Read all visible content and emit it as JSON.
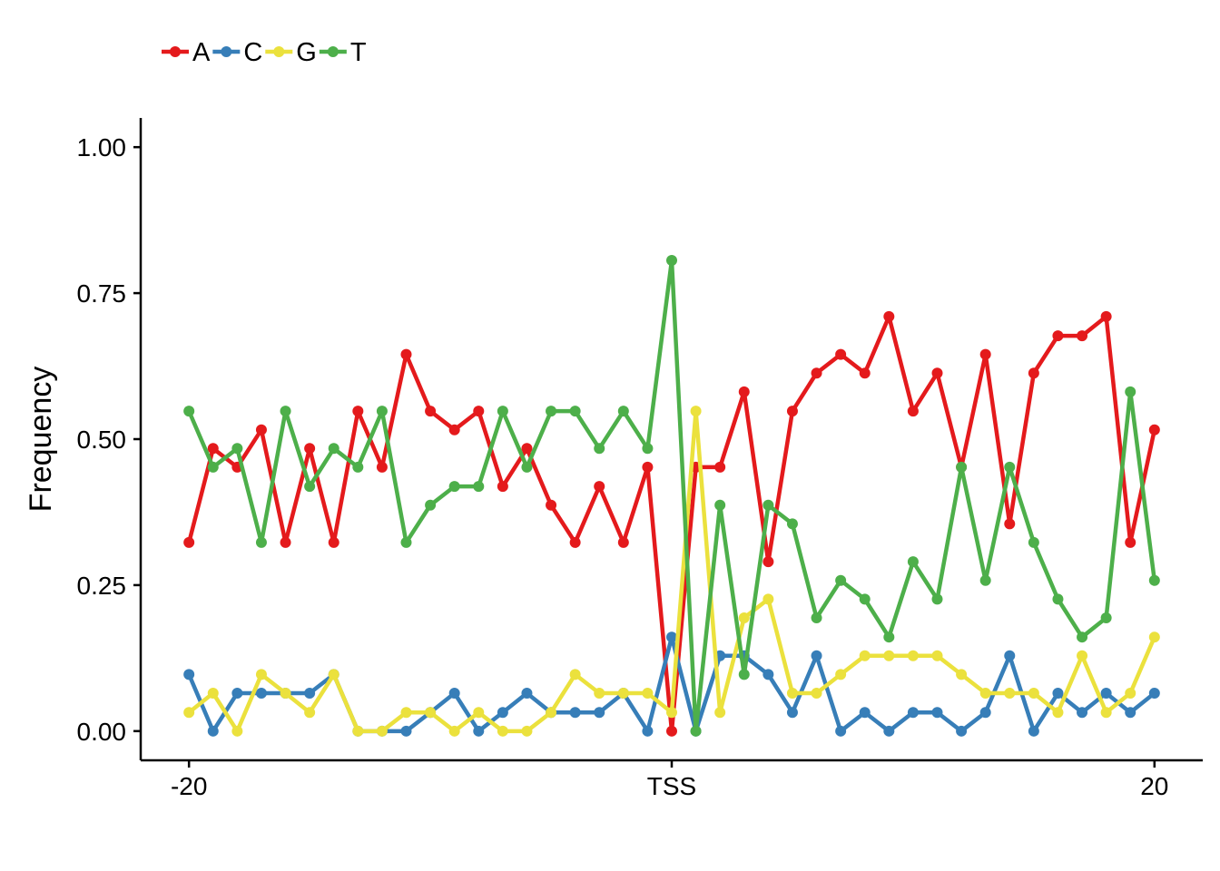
{
  "chart_data": {
    "type": "line",
    "title": "",
    "xlabel": "",
    "ylabel": "Frequency",
    "x": [
      -20,
      -19,
      -18,
      -17,
      -16,
      -15,
      -14,
      -13,
      -12,
      -11,
      -10,
      -9,
      -8,
      -7,
      -6,
      -5,
      -4,
      -3,
      -2,
      -1,
      0,
      1,
      2,
      3,
      4,
      5,
      6,
      7,
      8,
      9,
      10,
      11,
      12,
      13,
      14,
      15,
      16,
      17,
      18,
      19,
      20
    ],
    "x_ticks": [
      {
        "value": -20,
        "label": "-20"
      },
      {
        "value": 0,
        "label": "TSS"
      },
      {
        "value": 20,
        "label": "20"
      }
    ],
    "xlim": [
      -22,
      22
    ],
    "ylim": [
      -0.05,
      1.05
    ],
    "y_ticks": [
      {
        "value": 0.0,
        "label": "0.00"
      },
      {
        "value": 0.25,
        "label": "0.25"
      },
      {
        "value": 0.5,
        "label": "0.50"
      },
      {
        "value": 0.75,
        "label": "0.75"
      },
      {
        "value": 1.0,
        "label": "1.00"
      }
    ],
    "grid": false,
    "legend_position": "top-left",
    "series": [
      {
        "name": "A",
        "color": "#e41a1c",
        "values": [
          0.323,
          0.484,
          0.452,
          0.516,
          0.323,
          0.484,
          0.323,
          0.548,
          0.452,
          0.645,
          0.548,
          0.516,
          0.548,
          0.419,
          0.484,
          0.387,
          0.323,
          0.419,
          0.323,
          0.452,
          0.0,
          0.452,
          0.452,
          0.581,
          0.29,
          0.548,
          0.613,
          0.645,
          0.613,
          0.71,
          0.548,
          0.613,
          0.452,
          0.645,
          0.355,
          0.613,
          0.677,
          0.677,
          0.71,
          0.323,
          0.516
        ]
      },
      {
        "name": "C",
        "color": "#377eb8",
        "values": [
          0.097,
          0.0,
          0.065,
          0.065,
          0.065,
          0.065,
          0.097,
          0.0,
          0.0,
          0.0,
          0.032,
          0.065,
          0.0,
          0.032,
          0.065,
          0.032,
          0.032,
          0.032,
          0.065,
          0.0,
          0.161,
          0.0,
          0.129,
          0.129,
          0.097,
          0.032,
          0.129,
          0.0,
          0.032,
          0.0,
          0.032,
          0.032,
          0.0,
          0.032,
          0.129,
          0.0,
          0.065,
          0.032,
          0.065,
          0.032,
          0.065
        ]
      },
      {
        "name": "G",
        "color": "#ebe13d",
        "values": [
          0.032,
          0.065,
          0.0,
          0.097,
          0.065,
          0.032,
          0.097,
          0.0,
          0.0,
          0.032,
          0.032,
          0.0,
          0.032,
          0.0,
          0.0,
          0.032,
          0.097,
          0.065,
          0.065,
          0.065,
          0.032,
          0.548,
          0.032,
          0.194,
          0.226,
          0.065,
          0.065,
          0.097,
          0.129,
          0.129,
          0.129,
          0.129,
          0.097,
          0.065,
          0.065,
          0.065,
          0.032,
          0.129,
          0.032,
          0.065,
          0.161
        ]
      },
      {
        "name": "T",
        "color": "#4daf4a",
        "values": [
          0.548,
          0.452,
          0.484,
          0.323,
          0.548,
          0.419,
          0.484,
          0.452,
          0.548,
          0.323,
          0.387,
          0.419,
          0.419,
          0.548,
          0.452,
          0.548,
          0.548,
          0.484,
          0.548,
          0.484,
          0.806,
          0.0,
          0.387,
          0.097,
          0.387,
          0.355,
          0.194,
          0.258,
          0.226,
          0.161,
          0.29,
          0.226,
          0.452,
          0.258,
          0.452,
          0.323,
          0.226,
          0.161,
          0.194,
          0.581,
          0.258
        ]
      }
    ]
  }
}
